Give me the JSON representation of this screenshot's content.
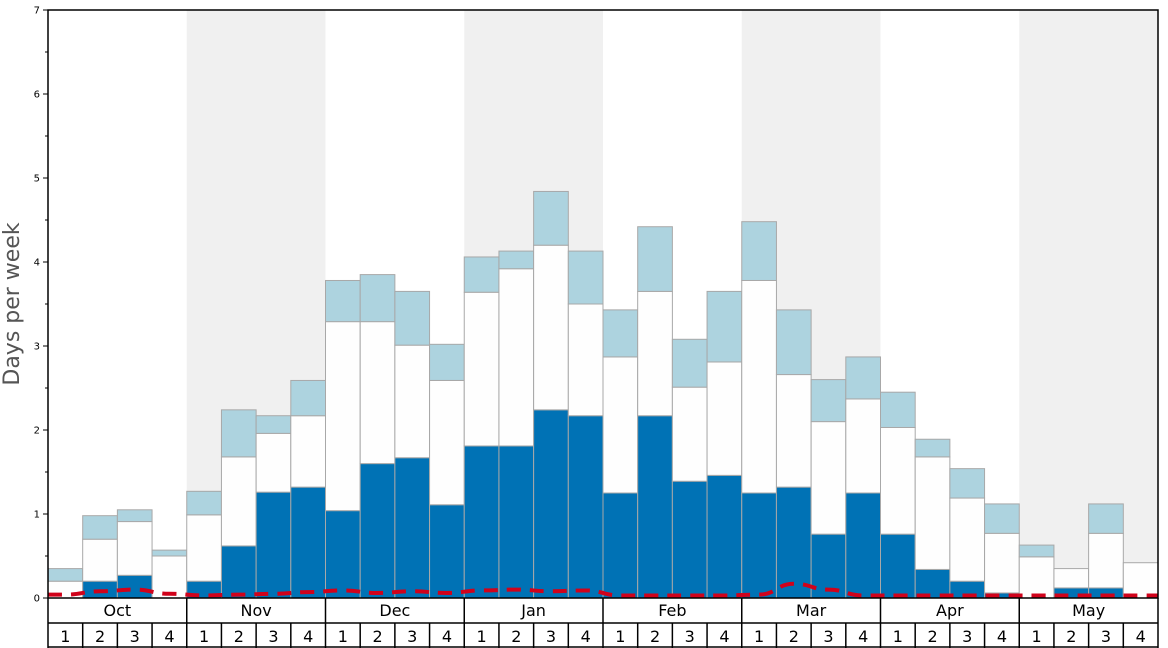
{
  "chart_data": {
    "type": "bar",
    "ylabel": "Days per week",
    "ylim": [
      0,
      7
    ],
    "yticks": [
      "0",
      "1",
      "2",
      "3",
      "4",
      "5",
      "6",
      "7"
    ],
    "months": [
      "Oct",
      "Nov",
      "Dec",
      "Jan",
      "Feb",
      "Mar",
      "Apr",
      "May"
    ],
    "weeks": [
      "1",
      "2",
      "3",
      "4"
    ],
    "stacked": true,
    "series": [
      {
        "values": [
          0.0,
          0.2,
          0.27,
          0.0,
          0.2,
          0.62,
          1.26,
          1.32,
          1.04,
          1.6,
          1.67,
          1.11,
          1.81,
          1.81,
          2.24,
          2.17,
          1.25,
          2.17,
          1.39,
          1.46,
          1.25,
          1.32,
          0.76,
          1.25,
          0.76,
          0.34,
          0.2,
          0.06,
          0.0,
          0.12,
          0.12,
          0.0
        ]
      },
      {
        "values": [
          0.2,
          0.5,
          0.64,
          0.5,
          0.79,
          1.06,
          0.7,
          0.85,
          2.25,
          1.69,
          1.34,
          1.48,
          1.83,
          2.11,
          1.96,
          1.33,
          1.62,
          1.48,
          1.12,
          1.35,
          2.53,
          1.34,
          1.34,
          1.12,
          1.27,
          1.34,
          0.99,
          0.71,
          0.49,
          0.23,
          0.65,
          0.42
        ]
      },
      {
        "values": [
          0.15,
          0.28,
          0.14,
          0.07,
          0.28,
          0.56,
          0.21,
          0.42,
          0.49,
          0.56,
          0.64,
          0.43,
          0.42,
          0.21,
          0.64,
          0.63,
          0.56,
          0.77,
          0.57,
          0.84,
          0.7,
          0.77,
          0.5,
          0.5,
          0.42,
          0.21,
          0.35,
          0.35,
          0.14,
          0.0,
          0.35,
          0.0
        ]
      }
    ],
    "trend_line": [
      0.04,
      0.08,
      0.1,
      0.05,
      0.03,
      0.04,
      0.05,
      0.07,
      0.09,
      0.06,
      0.08,
      0.06,
      0.09,
      0.1,
      0.08,
      0.09,
      0.03,
      0.03,
      0.03,
      0.03,
      0.04,
      0.17,
      0.1,
      0.03,
      0.03,
      0.03,
      0.03,
      0.03,
      0.03,
      0.03,
      0.03,
      0.03
    ],
    "colors": {
      "series": [
        "#0072b5",
        "#fefefe",
        "#add3df"
      ],
      "bar_stroke": "#a8a8a8",
      "trend": "#d0021b",
      "shade": "#f0f0f0",
      "axis": "#000000"
    },
    "grid": false,
    "legend": "none"
  }
}
